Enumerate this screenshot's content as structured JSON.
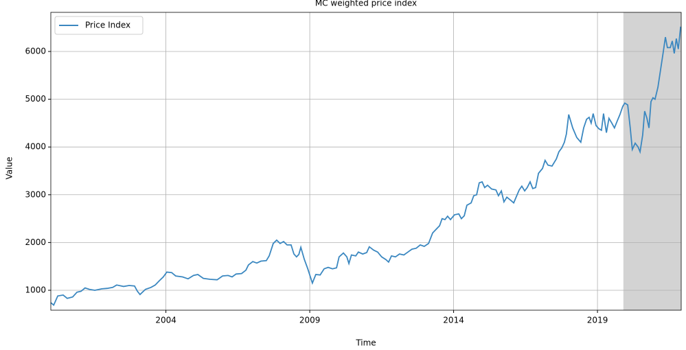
{
  "chart_data": {
    "type": "line",
    "title": "MC weighted price index",
    "x_label": "Time",
    "y_label": "Value",
    "x": [
      2000.0,
      2000.1,
      2000.24,
      2000.43,
      2000.57,
      2000.76,
      2000.91,
      2001.05,
      2001.19,
      2001.34,
      2001.53,
      2001.77,
      2001.96,
      2002.15,
      2002.29,
      2002.53,
      2002.72,
      2002.91,
      2003.01,
      2003.1,
      2003.29,
      2003.48,
      2003.63,
      2003.77,
      2003.91,
      2004.03,
      2004.2,
      2004.34,
      2004.58,
      2004.77,
      2004.96,
      2005.11,
      2005.3,
      2005.54,
      2005.78,
      2005.97,
      2006.16,
      2006.3,
      2006.44,
      2006.63,
      2006.78,
      2006.87,
      2007.02,
      2007.16,
      2007.3,
      2007.49,
      2007.59,
      2007.73,
      2007.85,
      2007.97,
      2008.09,
      2008.21,
      2008.35,
      2008.45,
      2008.54,
      2008.62,
      2008.69,
      2008.81,
      2008.93,
      2009.09,
      2009.21,
      2009.36,
      2009.5,
      2009.64,
      2009.79,
      2009.93,
      2010.02,
      2010.17,
      2010.29,
      2010.36,
      2010.45,
      2010.6,
      2010.69,
      2010.84,
      2010.98,
      2011.07,
      2011.22,
      2011.36,
      2011.5,
      2011.65,
      2011.74,
      2011.84,
      2011.98,
      2012.12,
      2012.27,
      2012.41,
      2012.55,
      2012.7,
      2012.84,
      2012.98,
      2013.13,
      2013.27,
      2013.43,
      2013.51,
      2013.6,
      2013.7,
      2013.79,
      2013.89,
      2014.03,
      2014.18,
      2014.27,
      2014.37,
      2014.46,
      2014.61,
      2014.7,
      2014.8,
      2014.89,
      2014.99,
      2015.08,
      2015.18,
      2015.32,
      2015.47,
      2015.56,
      2015.66,
      2015.75,
      2015.85,
      2015.99,
      2016.09,
      2016.18,
      2016.28,
      2016.37,
      2016.47,
      2016.56,
      2016.66,
      2016.75,
      2016.85,
      2016.95,
      2017.09,
      2017.18,
      2017.28,
      2017.42,
      2017.57,
      2017.66,
      2017.76,
      2017.85,
      2017.92,
      2018.0,
      2018.14,
      2018.28,
      2018.42,
      2018.52,
      2018.62,
      2018.71,
      2018.78,
      2018.85,
      2018.95,
      2019.05,
      2019.14,
      2019.21,
      2019.31,
      2019.4,
      2019.5,
      2019.59,
      2019.69,
      2019.78,
      2019.88,
      2019.95,
      2020.05,
      2020.14,
      2020.21,
      2020.31,
      2020.41,
      2020.48,
      2020.57,
      2020.64,
      2020.72,
      2020.79,
      2020.86,
      2020.93,
      2021.0,
      2021.1,
      2021.19,
      2021.29,
      2021.36,
      2021.43,
      2021.53,
      2021.6,
      2021.67,
      2021.74,
      2021.81,
      2021.89
    ],
    "series": [
      {
        "name": "Price Index",
        "color": "#3a87c0",
        "values": [
          740,
          690,
          880,
          900,
          830,
          860,
          960,
          980,
          1050,
          1020,
          1000,
          1030,
          1040,
          1060,
          1110,
          1080,
          1100,
          1090,
          980,
          910,
          1020,
          1060,
          1110,
          1200,
          1280,
          1380,
          1370,
          1300,
          1280,
          1240,
          1310,
          1330,
          1250,
          1230,
          1220,
          1300,
          1310,
          1280,
          1340,
          1350,
          1420,
          1530,
          1600,
          1570,
          1610,
          1620,
          1720,
          1980,
          2050,
          1980,
          2020,
          1950,
          1950,
          1760,
          1700,
          1750,
          1900,
          1650,
          1450,
          1150,
          1330,
          1320,
          1450,
          1480,
          1450,
          1470,
          1700,
          1780,
          1700,
          1560,
          1740,
          1720,
          1800,
          1760,
          1790,
          1910,
          1840,
          1800,
          1700,
          1640,
          1590,
          1720,
          1700,
          1760,
          1740,
          1800,
          1860,
          1880,
          1950,
          1920,
          1980,
          2200,
          2300,
          2350,
          2500,
          2480,
          2550,
          2480,
          2580,
          2600,
          2500,
          2560,
          2780,
          2830,
          2980,
          3000,
          3250,
          3270,
          3150,
          3200,
          3120,
          3100,
          2980,
          3080,
          2850,
          2950,
          2880,
          2830,
          2960,
          3100,
          3180,
          3080,
          3150,
          3270,
          3130,
          3150,
          3450,
          3550,
          3720,
          3620,
          3600,
          3750,
          3900,
          3980,
          4100,
          4270,
          4680,
          4400,
          4200,
          4100,
          4400,
          4580,
          4620,
          4500,
          4700,
          4450,
          4380,
          4350,
          4700,
          4300,
          4600,
          4500,
          4400,
          4550,
          4680,
          4850,
          4920,
          4880,
          4400,
          3950,
          4080,
          4000,
          3900,
          4250,
          4750,
          4600,
          4400,
          4950,
          5030,
          5000,
          5250,
          5600,
          6000,
          6300,
          6080,
          6080,
          6220,
          5960,
          6270,
          6050,
          6520
        ]
      }
    ],
    "shaded_span": [
      2019.9,
      2021.91
    ],
    "shade_color": "#d3d3d3",
    "xlim": [
      2000,
      2021.91
    ],
    "xticks": [
      2004,
      2009,
      2014,
      2019
    ],
    "ylim": [
      583,
      6819
    ],
    "yticks": [
      1000,
      2000,
      3000,
      4000,
      5000,
      6000
    ],
    "grid": true,
    "legend": "upper left"
  }
}
